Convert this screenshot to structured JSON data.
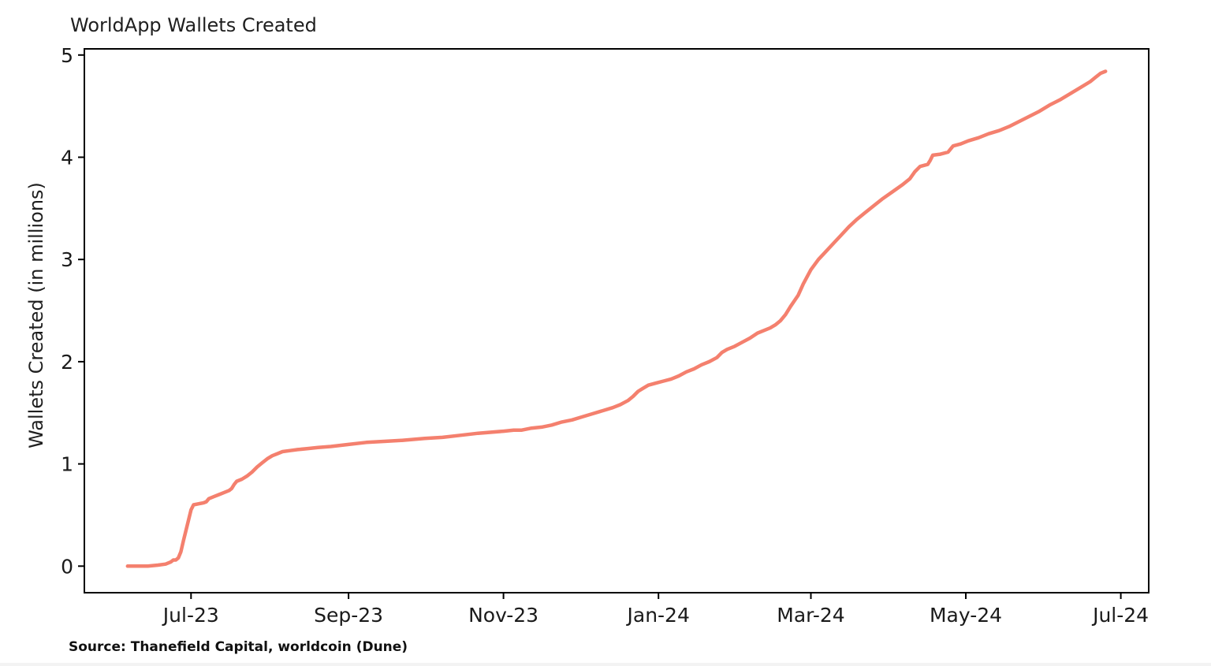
{
  "chart_data": {
    "type": "line",
    "title": "WorldApp Wallets Created",
    "xlabel": "",
    "ylabel": "Wallets Created (in millions)",
    "source_note": "Source: Thanefield Capital, worldcoin (Dune)",
    "grid": false,
    "legend": "none",
    "line_color": "#f4806e",
    "axis_color": "#000000",
    "ylim": [
      -0.26,
      5.06
    ],
    "xlim": [
      "2023-05-20",
      "2024-07-12"
    ],
    "y_ticks": [
      0,
      1,
      2,
      3,
      4,
      5
    ],
    "x_ticks": [
      {
        "date": "2023-07-01",
        "label": "Jul-23"
      },
      {
        "date": "2023-09-01",
        "label": "Sep-23"
      },
      {
        "date": "2023-11-01",
        "label": "Nov-23"
      },
      {
        "date": "2024-01-01",
        "label": "Jan-24"
      },
      {
        "date": "2024-03-01",
        "label": "Mar-24"
      },
      {
        "date": "2024-05-01",
        "label": "May-24"
      },
      {
        "date": "2024-07-01",
        "label": "Jul-24"
      }
    ],
    "series": [
      {
        "name": "WorldApp Wallets Created (millions, cumulative)",
        "color": "#f4806e",
        "points": [
          [
            "2023-06-06",
            0.0
          ],
          [
            "2023-06-10",
            0.0
          ],
          [
            "2023-06-14",
            0.0
          ],
          [
            "2023-06-18",
            0.01
          ],
          [
            "2023-06-21",
            0.02
          ],
          [
            "2023-06-23",
            0.04
          ],
          [
            "2023-06-24",
            0.06
          ],
          [
            "2023-06-25",
            0.06
          ],
          [
            "2023-06-26",
            0.08
          ],
          [
            "2023-06-27",
            0.14
          ],
          [
            "2023-06-28",
            0.25
          ],
          [
            "2023-06-29",
            0.35
          ],
          [
            "2023-06-30",
            0.45
          ],
          [
            "2023-07-01",
            0.55
          ],
          [
            "2023-07-02",
            0.6
          ],
          [
            "2023-07-04",
            0.61
          ],
          [
            "2023-07-06",
            0.62
          ],
          [
            "2023-07-07",
            0.63
          ],
          [
            "2023-07-08",
            0.66
          ],
          [
            "2023-07-10",
            0.68
          ],
          [
            "2023-07-12",
            0.7
          ],
          [
            "2023-07-14",
            0.72
          ],
          [
            "2023-07-16",
            0.74
          ],
          [
            "2023-07-17",
            0.76
          ],
          [
            "2023-07-18",
            0.8
          ],
          [
            "2023-07-19",
            0.83
          ],
          [
            "2023-07-21",
            0.85
          ],
          [
            "2023-07-23",
            0.88
          ],
          [
            "2023-07-25",
            0.92
          ],
          [
            "2023-07-27",
            0.97
          ],
          [
            "2023-07-29",
            1.01
          ],
          [
            "2023-07-31",
            1.05
          ],
          [
            "2023-08-02",
            1.08
          ],
          [
            "2023-08-04",
            1.1
          ],
          [
            "2023-08-06",
            1.12
          ],
          [
            "2023-08-09",
            1.13
          ],
          [
            "2023-08-12",
            1.14
          ],
          [
            "2023-08-16",
            1.15
          ],
          [
            "2023-08-20",
            1.16
          ],
          [
            "2023-08-25",
            1.17
          ],
          [
            "2023-09-01",
            1.19
          ],
          [
            "2023-09-08",
            1.21
          ],
          [
            "2023-09-15",
            1.22
          ],
          [
            "2023-09-22",
            1.23
          ],
          [
            "2023-10-01",
            1.25
          ],
          [
            "2023-10-08",
            1.26
          ],
          [
            "2023-10-15",
            1.28
          ],
          [
            "2023-10-22",
            1.3
          ],
          [
            "2023-11-01",
            1.32
          ],
          [
            "2023-11-05",
            1.33
          ],
          [
            "2023-11-08",
            1.33
          ],
          [
            "2023-11-12",
            1.35
          ],
          [
            "2023-11-16",
            1.36
          ],
          [
            "2023-11-20",
            1.38
          ],
          [
            "2023-11-24",
            1.41
          ],
          [
            "2023-11-28",
            1.43
          ],
          [
            "2023-12-02",
            1.46
          ],
          [
            "2023-12-06",
            1.49
          ],
          [
            "2023-12-10",
            1.52
          ],
          [
            "2023-12-14",
            1.55
          ],
          [
            "2023-12-17",
            1.58
          ],
          [
            "2023-12-20",
            1.62
          ],
          [
            "2023-12-22",
            1.66
          ],
          [
            "2023-12-24",
            1.71
          ],
          [
            "2023-12-26",
            1.74
          ],
          [
            "2023-12-28",
            1.77
          ],
          [
            "2023-12-31",
            1.79
          ],
          [
            "2024-01-03",
            1.81
          ],
          [
            "2024-01-06",
            1.83
          ],
          [
            "2024-01-09",
            1.86
          ],
          [
            "2024-01-12",
            1.9
          ],
          [
            "2024-01-15",
            1.93
          ],
          [
            "2024-01-18",
            1.97
          ],
          [
            "2024-01-21",
            2.0
          ],
          [
            "2024-01-24",
            2.04
          ],
          [
            "2024-01-26",
            2.09
          ],
          [
            "2024-01-28",
            2.12
          ],
          [
            "2024-01-31",
            2.15
          ],
          [
            "2024-02-03",
            2.19
          ],
          [
            "2024-02-06",
            2.23
          ],
          [
            "2024-02-09",
            2.28
          ],
          [
            "2024-02-12",
            2.31
          ],
          [
            "2024-02-14",
            2.33
          ],
          [
            "2024-02-16",
            2.36
          ],
          [
            "2024-02-18",
            2.4
          ],
          [
            "2024-02-20",
            2.46
          ],
          [
            "2024-02-22",
            2.54
          ],
          [
            "2024-02-25",
            2.65
          ],
          [
            "2024-02-27",
            2.76
          ],
          [
            "2024-03-01",
            2.9
          ],
          [
            "2024-03-04",
            3.0
          ],
          [
            "2024-03-07",
            3.08
          ],
          [
            "2024-03-10",
            3.16
          ],
          [
            "2024-03-13",
            3.24
          ],
          [
            "2024-03-16",
            3.32
          ],
          [
            "2024-03-19",
            3.39
          ],
          [
            "2024-03-22",
            3.45
          ],
          [
            "2024-03-25",
            3.51
          ],
          [
            "2024-03-29",
            3.59
          ],
          [
            "2024-04-02",
            3.66
          ],
          [
            "2024-04-06",
            3.73
          ],
          [
            "2024-04-09",
            3.79
          ],
          [
            "2024-04-11",
            3.86
          ],
          [
            "2024-04-13",
            3.91
          ],
          [
            "2024-04-16",
            3.93
          ],
          [
            "2024-04-17",
            3.97
          ],
          [
            "2024-04-18",
            4.02
          ],
          [
            "2024-04-21",
            4.03
          ],
          [
            "2024-04-24",
            4.05
          ],
          [
            "2024-04-25",
            4.08
          ],
          [
            "2024-04-26",
            4.11
          ],
          [
            "2024-04-29",
            4.13
          ],
          [
            "2024-05-02",
            4.16
          ],
          [
            "2024-05-06",
            4.19
          ],
          [
            "2024-05-10",
            4.23
          ],
          [
            "2024-05-14",
            4.26
          ],
          [
            "2024-05-18",
            4.3
          ],
          [
            "2024-05-22",
            4.35
          ],
          [
            "2024-05-26",
            4.4
          ],
          [
            "2024-05-30",
            4.45
          ],
          [
            "2024-06-03",
            4.51
          ],
          [
            "2024-06-07",
            4.56
          ],
          [
            "2024-06-11",
            4.62
          ],
          [
            "2024-06-15",
            4.68
          ],
          [
            "2024-06-19",
            4.74
          ],
          [
            "2024-06-21",
            4.78
          ],
          [
            "2024-06-23",
            4.82
          ],
          [
            "2024-06-25",
            4.84
          ]
        ]
      }
    ]
  }
}
